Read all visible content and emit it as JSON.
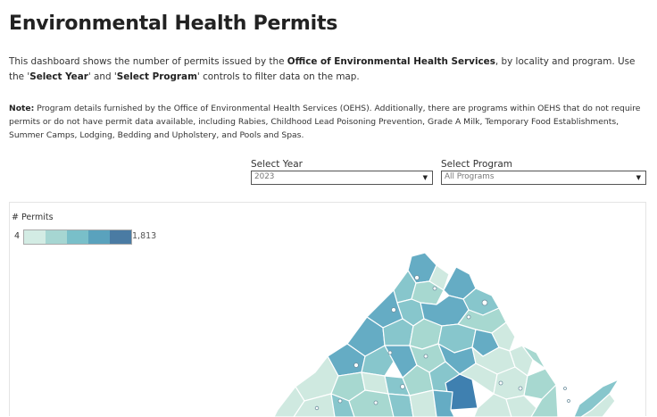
{
  "page": {
    "title": "Environmental Health Permits",
    "intro": {
      "text1": "This dashboard shows the number of permits issued by the ",
      "bold1": "Office of Environmental Health Services",
      "text2": ", by locality and program. Use the '",
      "bold2": "Select Year",
      "text3": "' and '",
      "bold3": "Select Program",
      "text4": "' controls to filter data on the map."
    },
    "note": {
      "label": "Note:",
      "text": " Program details furnished by the Office of Environmental Health Services (OEHS). Additionally, there are programs within OEHS that do not require permits or do not have permit data available, including Rabies, Childhood Lead Poisoning Prevention, Grade A Milk, Temporary Food Establishments, Summer Camps, Lodging, Bedding and Upholstery, and Pools and Spas."
    }
  },
  "filters": {
    "year": {
      "label": "Select Year",
      "value": "2023"
    },
    "program": {
      "label": "Select Program",
      "value": "All Programs"
    }
  },
  "legend": {
    "title": "# Permits",
    "min": "4",
    "max": "1,813",
    "colors": [
      "#d3ece4",
      "#a6d6d2",
      "#79bfc9",
      "#5aa2bd",
      "#4a7ba3"
    ]
  },
  "map": {
    "border_color": "#ffffff",
    "colors": {
      "c1": "#cfe9e0",
      "c2": "#a7d8d0",
      "c3": "#87c6cc",
      "c4": "#65acc4",
      "c5": "#4a93bb",
      "c6": "#3f80b0"
    }
  }
}
